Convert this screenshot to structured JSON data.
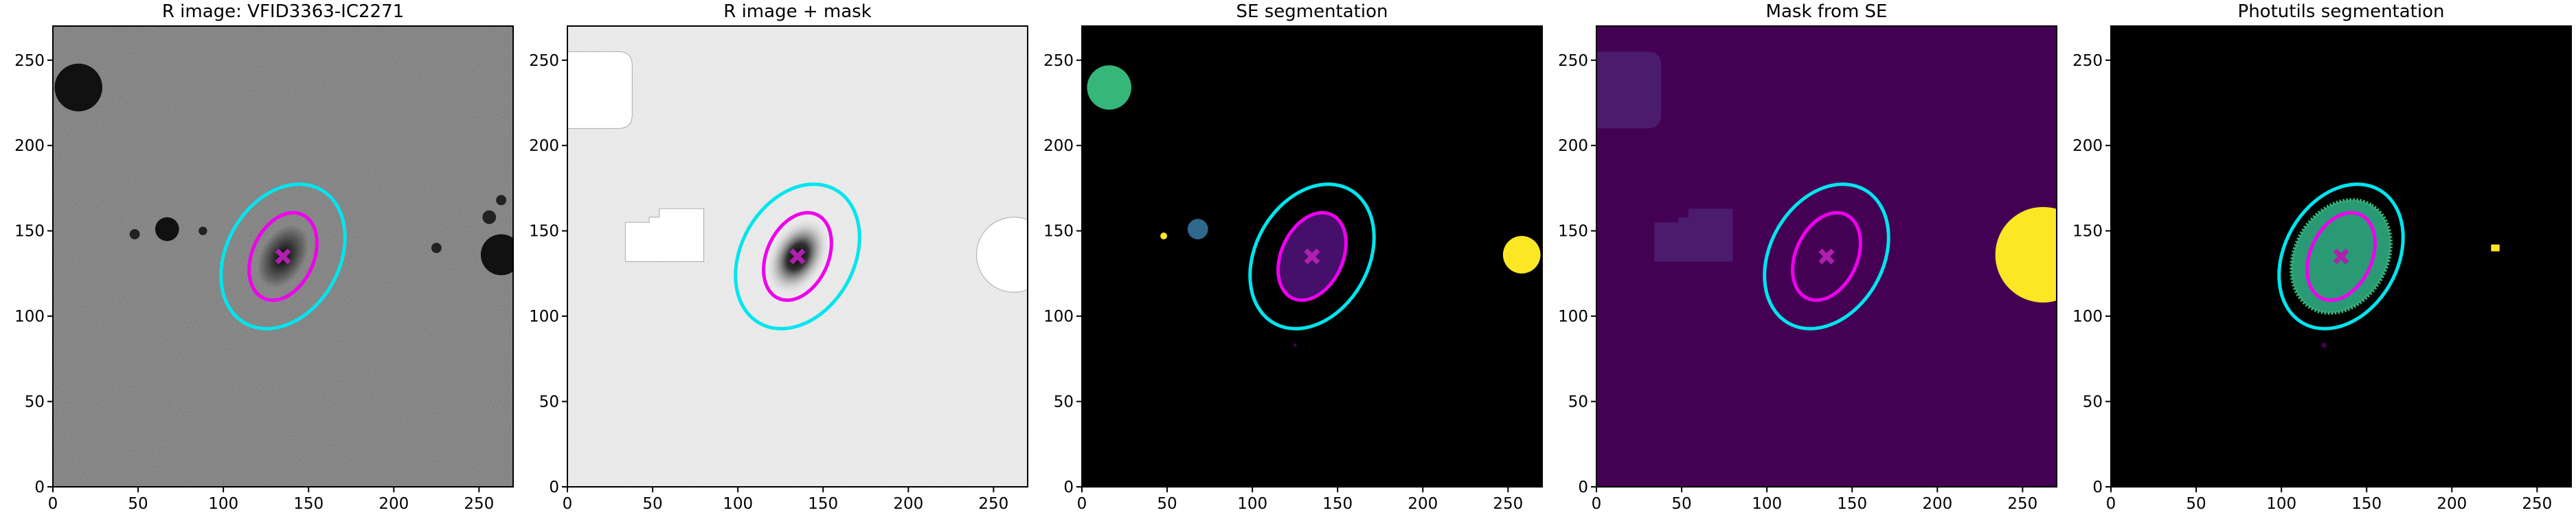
{
  "chart_data": [
    {
      "type": "image",
      "title": "R image: VFID3363-IC2271",
      "xlim": [
        0,
        270
      ],
      "ylim": [
        0,
        270
      ],
      "xticks": [
        0,
        50,
        100,
        150,
        200,
        250
      ],
      "yticks": [
        0,
        50,
        100,
        150,
        200,
        250
      ],
      "ellipses": [
        {
          "x": 135,
          "y": 135,
          "a": 45,
          "b": 33,
          "angle": 60,
          "color": "#00e5ee"
        },
        {
          "x": 135,
          "y": 135,
          "a": 27,
          "b": 18,
          "angle": 65,
          "color": "#ee00ee"
        }
      ],
      "marker": {
        "x": 135,
        "y": 135,
        "color": "#b020b0"
      }
    },
    {
      "type": "image",
      "title": "R image + mask",
      "xlim": [
        0,
        270
      ],
      "ylim": [
        0,
        270
      ],
      "xticks": [
        0,
        50,
        100,
        150,
        200,
        250
      ],
      "yticks": [
        0,
        50,
        100,
        150,
        200,
        250
      ],
      "ellipses": [
        {
          "x": 135,
          "y": 135,
          "a": 45,
          "b": 33,
          "angle": 60,
          "color": "#00e5ee"
        },
        {
          "x": 135,
          "y": 135,
          "a": 27,
          "b": 18,
          "angle": 65,
          "color": "#ee00ee"
        }
      ],
      "marker": {
        "x": 135,
        "y": 135,
        "color": "#b020b0"
      }
    },
    {
      "type": "image",
      "title": "SE segmentation",
      "xlim": [
        0,
        270
      ],
      "ylim": [
        0,
        270
      ],
      "xticks": [
        0,
        50,
        100,
        150,
        200,
        250
      ],
      "yticks": [
        0,
        50,
        100,
        150,
        200,
        250
      ],
      "ellipses": [
        {
          "x": 135,
          "y": 135,
          "a": 45,
          "b": 33,
          "angle": 60,
          "color": "#00e5ee"
        },
        {
          "x": 135,
          "y": 135,
          "a": 27,
          "b": 18,
          "angle": 65,
          "color": "#ee00ee"
        }
      ],
      "marker": {
        "x": 135,
        "y": 135,
        "color": "#b020b0"
      }
    },
    {
      "type": "image",
      "title": "Mask from SE",
      "xlim": [
        0,
        270
      ],
      "ylim": [
        0,
        270
      ],
      "xticks": [
        0,
        50,
        100,
        150,
        200,
        250
      ],
      "yticks": [
        0,
        50,
        100,
        150,
        200,
        250
      ],
      "ellipses": [
        {
          "x": 135,
          "y": 135,
          "a": 45,
          "b": 33,
          "angle": 60,
          "color": "#00e5ee"
        },
        {
          "x": 135,
          "y": 135,
          "a": 27,
          "b": 18,
          "angle": 65,
          "color": "#ee00ee"
        }
      ],
      "marker": {
        "x": 135,
        "y": 135,
        "color": "#b020b0"
      }
    },
    {
      "type": "image",
      "title": "Photutils segmentation",
      "xlim": [
        0,
        270
      ],
      "ylim": [
        0,
        270
      ],
      "xticks": [
        0,
        50,
        100,
        150,
        200,
        250
      ],
      "yticks": [
        0,
        50,
        100,
        150,
        200,
        250
      ],
      "ellipses": [
        {
          "x": 135,
          "y": 135,
          "a": 45,
          "b": 33,
          "angle": 60,
          "color": "#00e5ee"
        },
        {
          "x": 135,
          "y": 135,
          "a": 27,
          "b": 18,
          "angle": 65,
          "color": "#ee00ee"
        }
      ],
      "marker": {
        "x": 135,
        "y": 135,
        "color": "#b020b0"
      }
    }
  ]
}
